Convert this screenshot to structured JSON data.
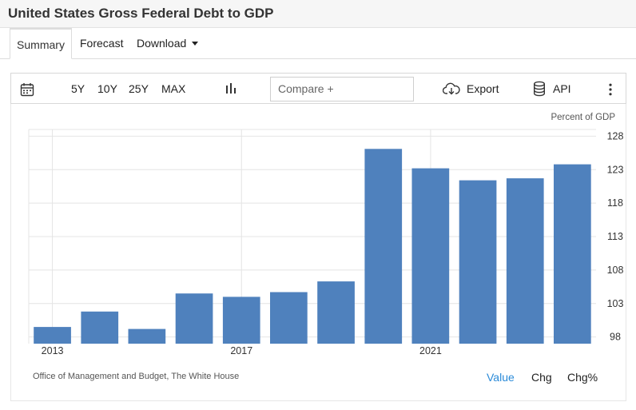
{
  "page": {
    "title": "United States Gross Federal Debt to GDP"
  },
  "tabs": [
    {
      "label": "Summary",
      "active": true
    },
    {
      "label": "Forecast",
      "active": false
    },
    {
      "label": "Download",
      "active": false
    }
  ],
  "toolbar": {
    "calendar_icon": "calendar-icon",
    "ranges": [
      "5Y",
      "10Y",
      "25Y",
      "MAX"
    ],
    "chart_type_icon": "bar-chart-icon",
    "compare_placeholder": "Compare +",
    "export_label": "Export",
    "export_icon": "cloud-download-icon",
    "api_label": "API",
    "api_icon": "database-icon",
    "more_icon": "vertical-ellipsis-icon"
  },
  "footer": {
    "source": "Office of Management and Budget, The White House",
    "modes": [
      {
        "label": "Value",
        "active": true
      },
      {
        "label": "Chg",
        "active": false
      },
      {
        "label": "Chg%",
        "active": false
      }
    ]
  },
  "colors": {
    "bar": "#4f81bd",
    "accent": "#2a8ad8",
    "grid": "#e4e4e4"
  },
  "chart_data": {
    "type": "bar",
    "unit_label": "Percent of GDP",
    "categories": [
      "2013",
      "2014",
      "2015",
      "2016",
      "2017",
      "2018",
      "2019",
      "2020",
      "2021",
      "2022",
      "2023",
      "2024"
    ],
    "x_tick_labels": [
      "2013",
      "2017",
      "2021"
    ],
    "values": [
      99.5,
      101.8,
      99.2,
      104.5,
      104.0,
      104.7,
      106.3,
      126.1,
      123.2,
      121.4,
      121.7,
      123.8
    ],
    "yticks": [
      98,
      103,
      108,
      113,
      118,
      123,
      128
    ],
    "ylim": [
      97,
      129
    ],
    "y_axis_side": "right",
    "grid": true,
    "legend": "none"
  }
}
